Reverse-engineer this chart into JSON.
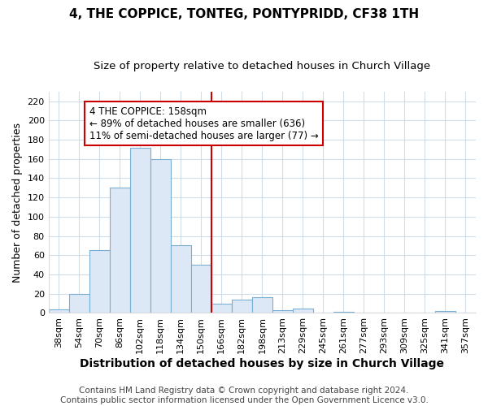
{
  "title": "4, THE COPPICE, TONTEG, PONTYPRIDD, CF38 1TH",
  "subtitle": "Size of property relative to detached houses in Church Village",
  "xlabel": "Distribution of detached houses by size in Church Village",
  "ylabel": "Number of detached properties",
  "bar_color": "#dce8f5",
  "bar_edge_color": "#7aafd4",
  "categories": [
    "38sqm",
    "54sqm",
    "70sqm",
    "86sqm",
    "102sqm",
    "118sqm",
    "134sqm",
    "150sqm",
    "166sqm",
    "182sqm",
    "198sqm",
    "213sqm",
    "229sqm",
    "245sqm",
    "261sqm",
    "277sqm",
    "293sqm",
    "309sqm",
    "325sqm",
    "341sqm",
    "357sqm"
  ],
  "values": [
    4,
    20,
    65,
    130,
    172,
    160,
    70,
    50,
    10,
    14,
    16,
    3,
    5,
    0,
    1,
    0,
    0,
    0,
    0,
    2,
    0
  ],
  "ylim": [
    0,
    230
  ],
  "yticks": [
    0,
    20,
    40,
    60,
    80,
    100,
    120,
    140,
    160,
    180,
    200,
    220
  ],
  "property_line_bin_index": 8.0,
  "annotation_text": "4 THE COPPICE: 158sqm\n← 89% of detached houses are smaller (636)\n11% of semi-detached houses are larger (77) →",
  "annotation_box_color": "#ffffff",
  "annotation_box_edge_color": "#cc0000",
  "vline_color": "#cc0000",
  "background_color": "#ffffff",
  "grid_color": "#d0dce8",
  "footer_text": "Contains HM Land Registry data © Crown copyright and database right 2024.\nContains public sector information licensed under the Open Government Licence v3.0.",
  "title_fontsize": 11,
  "subtitle_fontsize": 9.5,
  "xlabel_fontsize": 10,
  "ylabel_fontsize": 9,
  "tick_fontsize": 8,
  "footer_fontsize": 7.5,
  "annotation_fontsize": 8.5
}
